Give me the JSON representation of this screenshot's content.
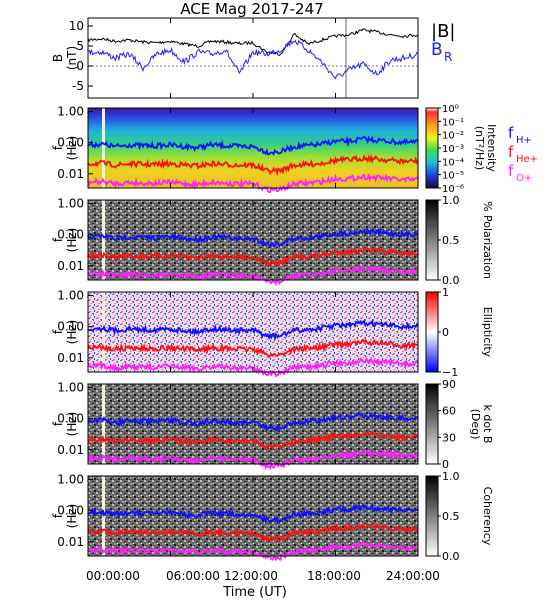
{
  "title": "ACE Mag 2017-247",
  "xaxis": {
    "label": "Time (UT)",
    "ticks": [
      "00:00:00",
      "06:00:00",
      "12:00:00",
      "18:00:00",
      "24:00:00"
    ],
    "range_hours": [
      0,
      24
    ]
  },
  "colors": {
    "B_total": "#000000",
    "B_R": "#2020ff",
    "f_H": "#1010ff",
    "f_He": "#ff1010",
    "f_O": "#ff20ff"
  },
  "chart_data": [
    {
      "type": "line",
      "panel": "field",
      "ylabel": "B",
      "yunit": "(nT)",
      "ylim": [
        -8,
        12
      ],
      "yticks": [
        "10",
        "5",
        "0",
        "-5"
      ],
      "legend": [
        "|B|",
        "B_R"
      ],
      "legend_labels": {
        "B_total": "|B|",
        "B_R_main": "B",
        "B_R_sub": "R"
      },
      "x_hours": [
        0,
        1,
        2,
        3,
        4,
        5,
        6,
        7,
        8,
        9,
        10,
        11,
        12,
        13,
        14,
        15,
        16,
        17,
        18,
        19,
        20,
        21,
        22,
        23,
        24
      ],
      "series": [
        {
          "name": "|B|",
          "values": [
            6.5,
            6.8,
            6.2,
            6.5,
            6.0,
            5.8,
            6.2,
            5.5,
            5.0,
            6.2,
            6.0,
            5.6,
            5.8,
            3.5,
            3.0,
            8.0,
            5.5,
            6.5,
            7.5,
            7.8,
            9.0,
            8.5,
            7.8,
            7.5,
            7.8
          ]
        },
        {
          "name": "B_R",
          "values": [
            3.5,
            3.5,
            2.0,
            3.0,
            -0.5,
            3.0,
            4.0,
            1.0,
            3.5,
            3.0,
            4.0,
            -2.0,
            3.5,
            3.0,
            4.0,
            6.5,
            4.0,
            1.0,
            -3.0,
            -1.0,
            0.5,
            -2.0,
            1.5,
            2.0,
            3.0
          ]
        }
      ]
    },
    {
      "type": "heatmap",
      "panel": "intensity",
      "ylabel": "f",
      "yunit": "(Hz)",
      "yticks": [
        "1.00",
        "0.10",
        "0.01"
      ],
      "colorbar": {
        "label": "Intensity",
        "unit": "(nT²/Hz)",
        "ticks": [
          "10⁰",
          "10⁻¹",
          "10⁻²",
          "10⁻³",
          "10⁻⁴",
          "10⁻⁵",
          "10⁻⁶"
        ],
        "scale": "log"
      },
      "legend": {
        "f_H": [
          "f",
          "H+"
        ],
        "f_He": [
          "f",
          "He+"
        ],
        "f_O": [
          "f",
          "O+"
        ]
      }
    },
    {
      "type": "heatmap",
      "panel": "polarization",
      "ylabel": "f",
      "yunit": "(Hz)",
      "yticks": [
        "1.00",
        "0.10",
        "0.01"
      ],
      "colorbar": {
        "label": "% Polarization",
        "unit": "",
        "ticks": [
          "1.0",
          "0.5",
          "0.0"
        ],
        "scale": "linear"
      }
    },
    {
      "type": "heatmap",
      "panel": "ellipticity",
      "ylabel": "f",
      "yunit": "(Hz)",
      "yticks": [
        "1.00",
        "0.10",
        "0.01"
      ],
      "colorbar": {
        "label": "Ellipticity",
        "unit": "",
        "ticks": [
          "1",
          "0",
          "−1"
        ],
        "scale": "linear"
      }
    },
    {
      "type": "heatmap",
      "panel": "wave-normal",
      "ylabel": "f",
      "yunit": "(Hz)",
      "yticks": [
        "1.00",
        "0.10",
        "0.01"
      ],
      "colorbar": {
        "label": "k dot B",
        "unit": "(Deg)",
        "ticks": [
          "90",
          "60",
          "30",
          "0"
        ],
        "scale": "linear"
      }
    },
    {
      "type": "heatmap",
      "panel": "coherency",
      "ylabel": "f",
      "yunit": "(Hz)",
      "yticks": [
        "1.00",
        "0.10",
        "0.01"
      ],
      "colorbar": {
        "label": "Coherency",
        "unit": "",
        "ticks": [
          "1.0",
          "0.5",
          "0.0"
        ],
        "scale": "linear"
      }
    }
  ],
  "gyrofrequency_hz": {
    "x_hours": [
      0,
      1,
      2,
      3,
      4,
      5,
      6,
      7,
      8,
      9,
      10,
      11,
      12,
      13,
      14,
      15,
      16,
      17,
      18,
      19,
      20,
      21,
      22,
      23,
      24
    ],
    "f_H": [
      0.085,
      0.09,
      0.075,
      0.085,
      0.08,
      0.08,
      0.085,
      0.075,
      0.07,
      0.085,
      0.08,
      0.075,
      0.075,
      0.05,
      0.05,
      0.075,
      0.08,
      0.09,
      0.11,
      0.11,
      0.13,
      0.12,
      0.11,
      0.1,
      0.105
    ],
    "f_He": [
      0.021,
      0.022,
      0.019,
      0.021,
      0.02,
      0.02,
      0.021,
      0.019,
      0.018,
      0.021,
      0.02,
      0.019,
      0.019,
      0.0125,
      0.0125,
      0.019,
      0.02,
      0.022,
      0.027,
      0.028,
      0.032,
      0.03,
      0.027,
      0.025,
      0.026
    ],
    "f_O": [
      0.0053,
      0.0056,
      0.0048,
      0.0053,
      0.005,
      0.005,
      0.0053,
      0.0048,
      0.0045,
      0.0053,
      0.005,
      0.0047,
      0.0047,
      0.0031,
      0.0031,
      0.0047,
      0.005,
      0.0056,
      0.0069,
      0.0069,
      0.0081,
      0.0075,
      0.0069,
      0.0063,
      0.0066
    ]
  }
}
